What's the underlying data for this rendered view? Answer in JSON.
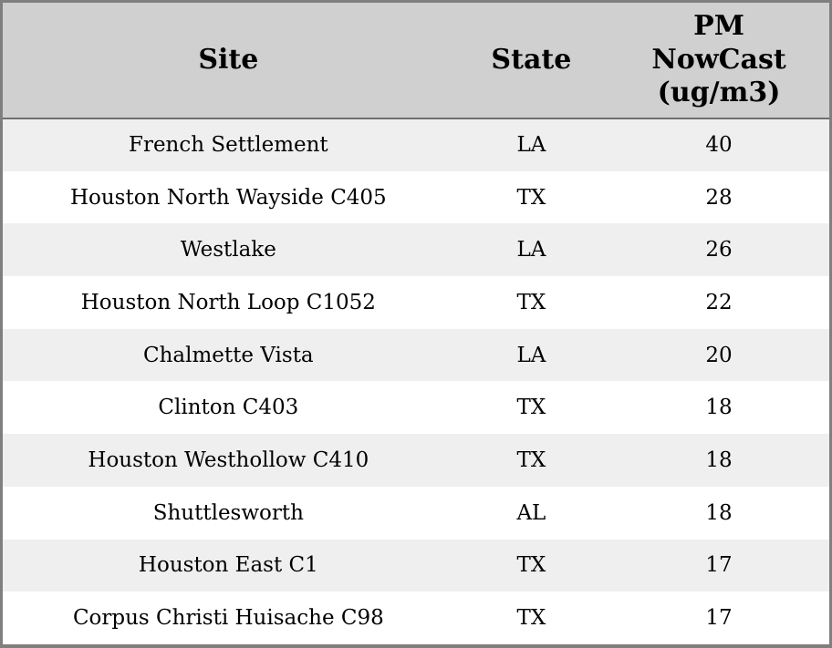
{
  "table": {
    "header": {
      "site": {
        "lines": [
          "Site"
        ]
      },
      "state": {
        "lines": [
          "State"
        ]
      },
      "pm": {
        "lines": [
          "PM",
          "NowCast",
          "(ug/m3)"
        ]
      }
    },
    "rows": [
      {
        "site": "French Settlement",
        "state": "LA",
        "pm": "40"
      },
      {
        "site": "Houston North Wayside C405",
        "state": "TX",
        "pm": "28"
      },
      {
        "site": "Westlake",
        "state": "LA",
        "pm": "26"
      },
      {
        "site": "Houston North Loop C1052",
        "state": "TX",
        "pm": "22"
      },
      {
        "site": "Chalmette Vista",
        "state": "LA",
        "pm": "20"
      },
      {
        "site": "Clinton C403",
        "state": "TX",
        "pm": "18"
      },
      {
        "site": "Houston Westhollow C410",
        "state": "TX",
        "pm": "18"
      },
      {
        "site": "Shuttlesworth",
        "state": "AL",
        "pm": "18"
      },
      {
        "site": "Houston East C1",
        "state": "TX",
        "pm": "17"
      },
      {
        "site": "Corpus Christi Huisache C98",
        "state": "TX",
        "pm": "17"
      }
    ]
  },
  "chart_data": {
    "type": "table",
    "columns": [
      "Site",
      "State",
      "PM NowCast (ug/m3)"
    ],
    "rows": [
      [
        "French Settlement",
        "LA",
        40
      ],
      [
        "Houston North Wayside C405",
        "TX",
        28
      ],
      [
        "Westlake",
        "LA",
        26
      ],
      [
        "Houston North Loop C1052",
        "TX",
        22
      ],
      [
        "Chalmette Vista",
        "LA",
        20
      ],
      [
        "Clinton C403",
        "TX",
        18
      ],
      [
        "Houston Westhollow C410",
        "TX",
        18
      ],
      [
        "Shuttlesworth",
        "AL",
        18
      ],
      [
        "Houston East C1",
        "TX",
        17
      ],
      [
        "Corpus Christi Huisache C98",
        "TX",
        17
      ]
    ]
  },
  "colors": {
    "header_bg": "#d0d0d0",
    "row_alt_bg": "#efefef",
    "row_bg": "#ffffff",
    "border": "#7f7f7f",
    "header_divider": "#6f6f6f",
    "text": "#000000"
  }
}
